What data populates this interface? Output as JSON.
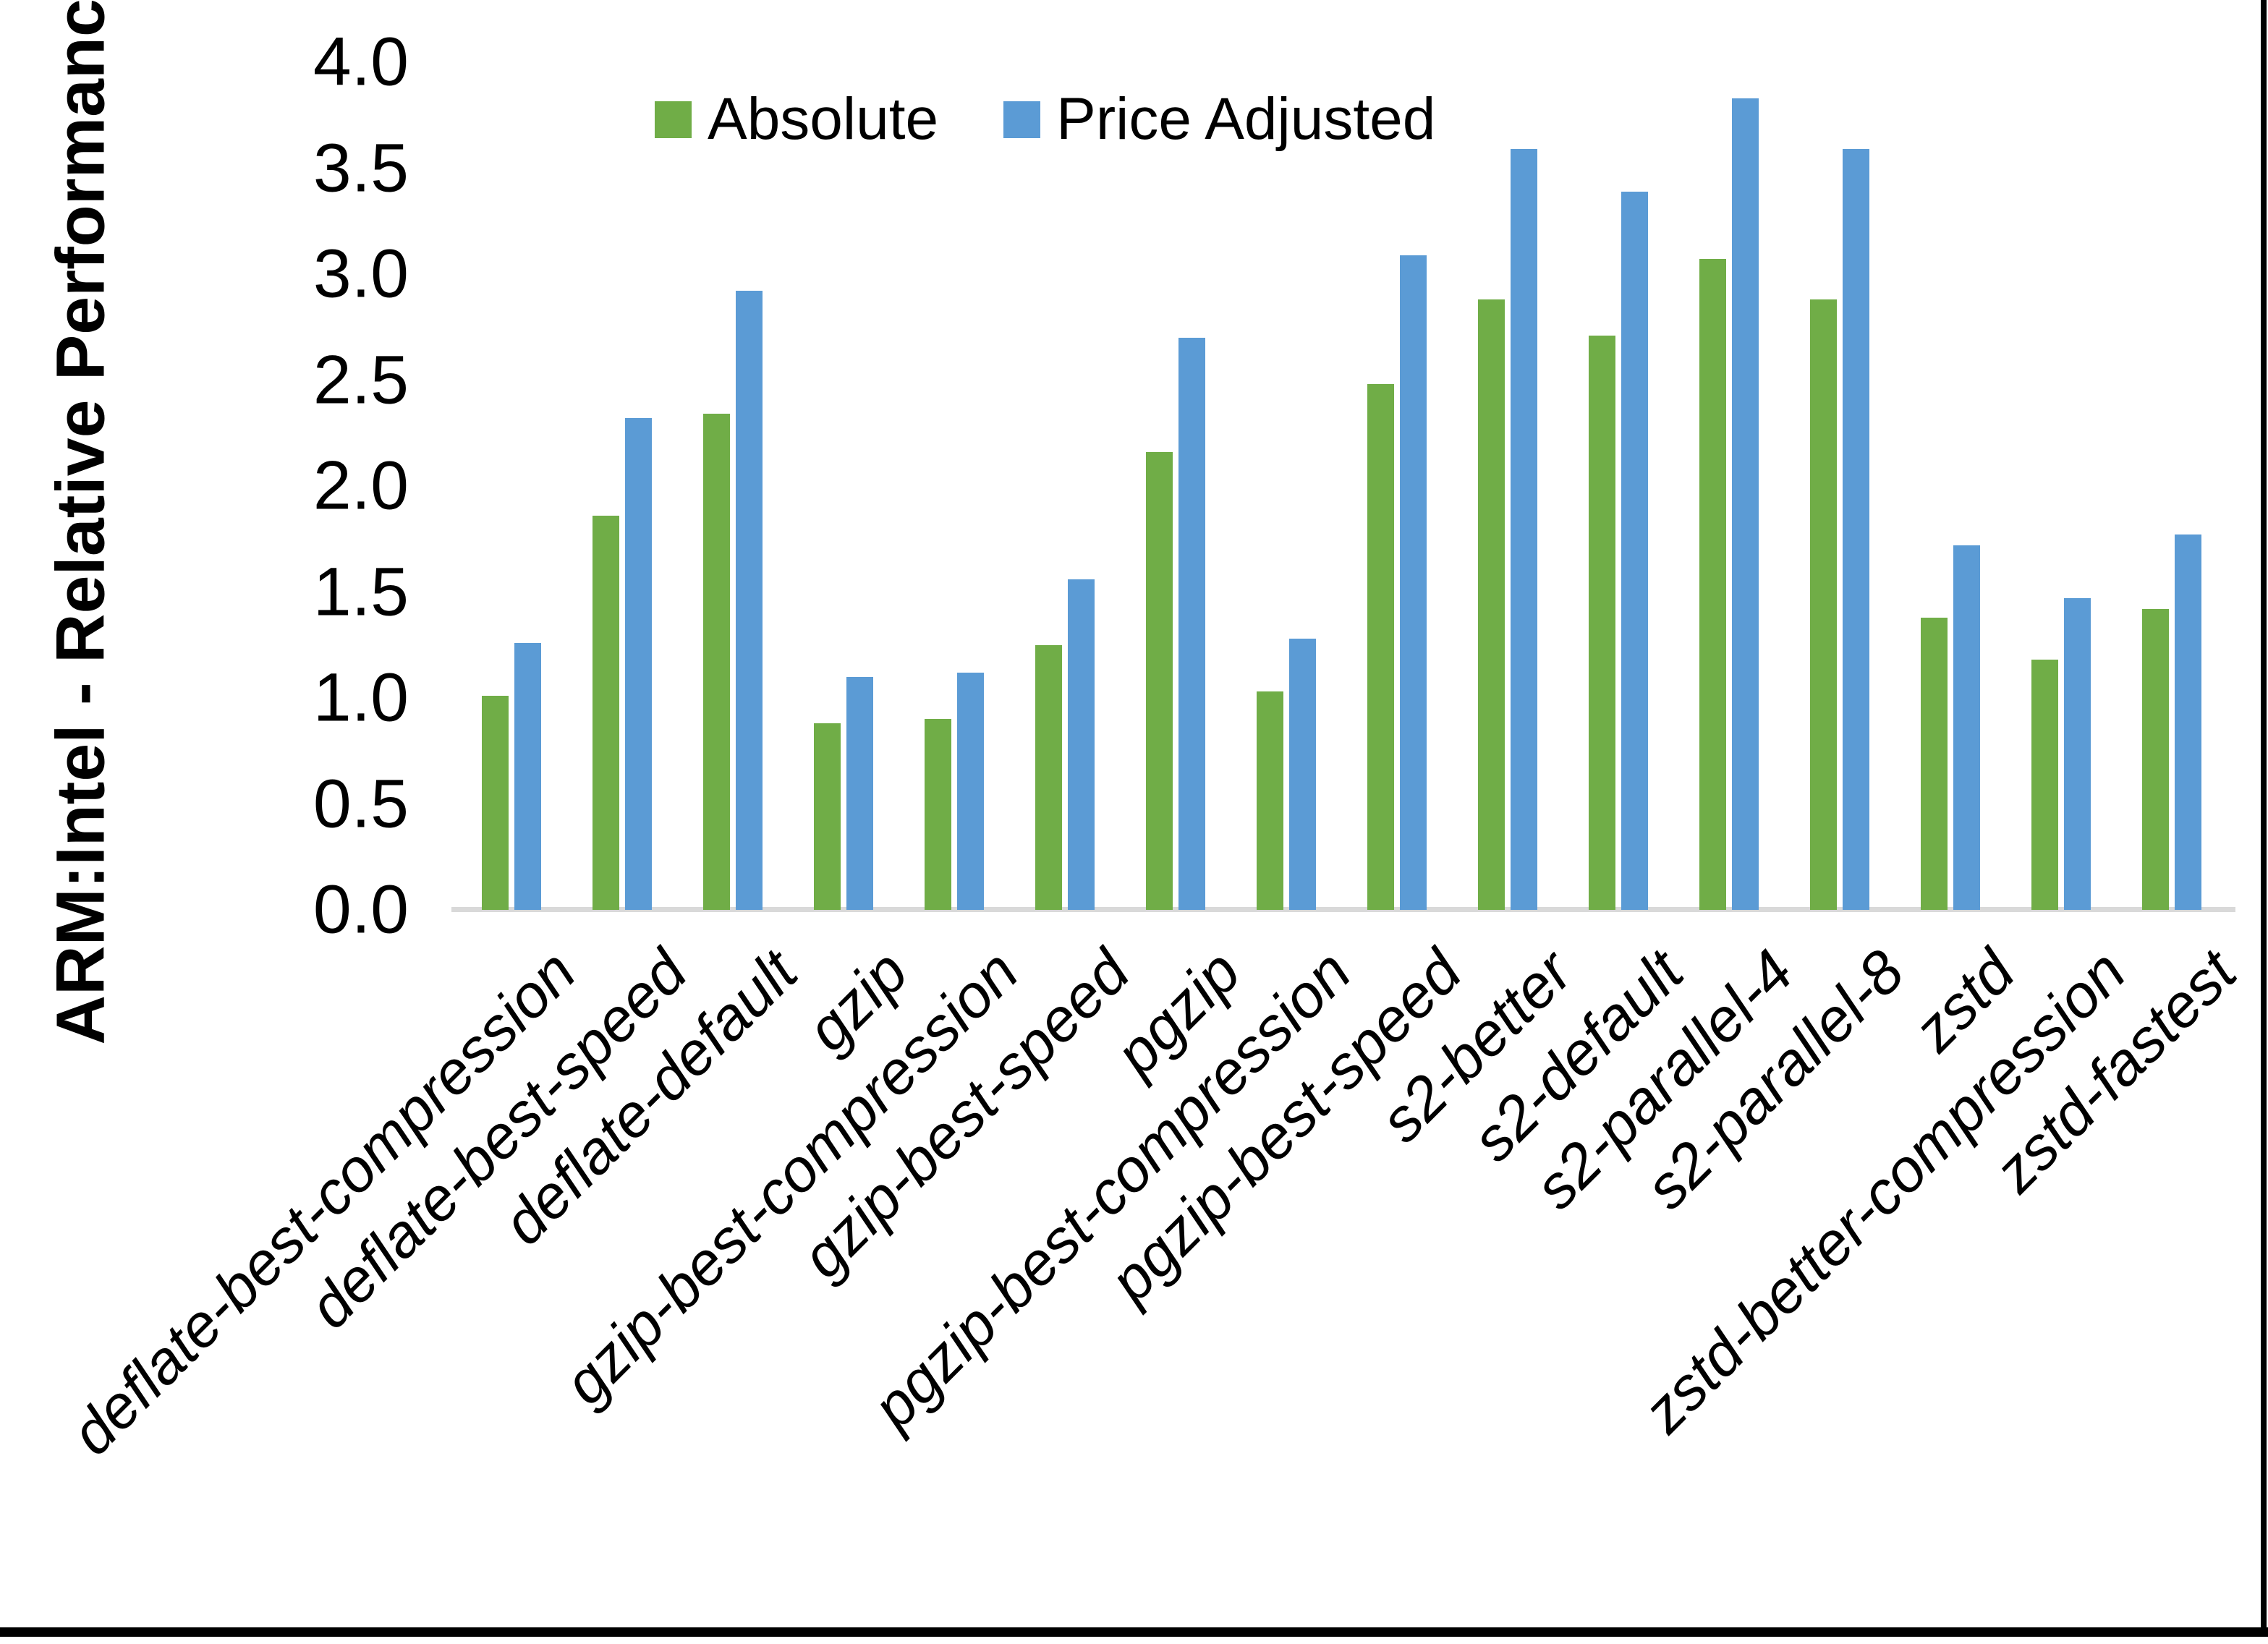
{
  "chart_data": {
    "type": "bar",
    "title": "",
    "xlabel": "",
    "ylabel": "ARM:Intel - Relative Performance",
    "categories": [
      "deflate-best-compression",
      "deflate-best-speed",
      "deflate-default",
      "gzip",
      "gzip-best-compression",
      "gzip-best-speed",
      "pgzip",
      "pgzip-best-compression",
      "pgzip-best-speed",
      "s2-better",
      "s2-default",
      "s2-parallel-4",
      "s2-parallel-8",
      "zstd",
      "zstd-better-compression",
      "zstd-fastest"
    ],
    "series": [
      {
        "name": "Absolute",
        "color": "#70AD47",
        "values": [
          1.01,
          1.86,
          2.34,
          0.88,
          0.9,
          1.25,
          2.16,
          1.03,
          2.48,
          2.88,
          2.71,
          3.07,
          2.88,
          1.38,
          1.18,
          1.42
        ]
      },
      {
        "name": "Price Adjusted",
        "color": "#5B9BD5",
        "values": [
          1.26,
          2.32,
          2.92,
          1.1,
          1.12,
          1.56,
          2.7,
          1.28,
          3.09,
          3.59,
          3.39,
          3.83,
          3.59,
          1.72,
          1.47,
          1.77
        ]
      }
    ],
    "ylim": [
      0.0,
      4.0
    ],
    "ytick_step": 0.5,
    "ytick_labels": [
      "0.0",
      "0.5",
      "1.0",
      "1.5",
      "2.0",
      "2.5",
      "3.0",
      "3.5",
      "4.0"
    ],
    "grid": false,
    "legend_position": "top-center",
    "axis_line_color": "#D9D9D9"
  }
}
